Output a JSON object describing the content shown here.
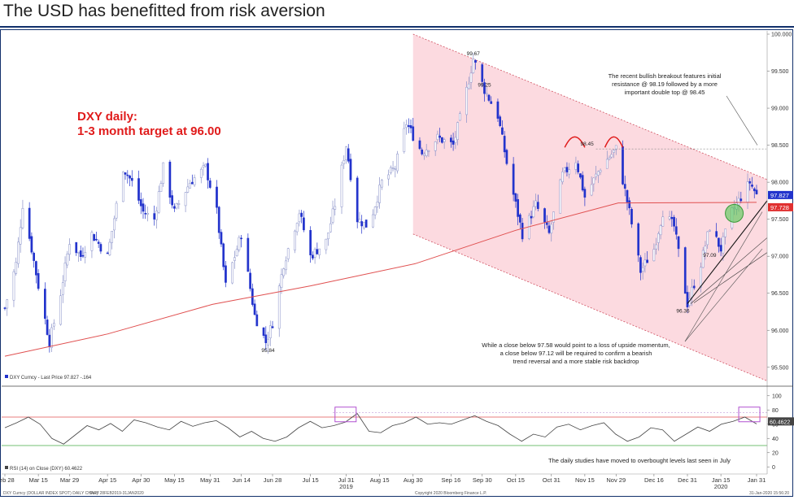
{
  "header": {
    "title": "The USD has benefitted from risk aversion"
  },
  "chart_data": [
    {
      "type": "candlestick",
      "instrument": "DXY Curncy",
      "target_text": [
        "DXY daily:",
        "1-3 month target at 96.00"
      ],
      "legend": "DXY Curncy - Last Price 97.827 -.164",
      "ylim": [
        95.3,
        100.0
      ],
      "y_ticks": [
        "100.000",
        "99.500",
        "99.000",
        "98.500",
        "98.000",
        "97.500",
        "97.000",
        "96.500",
        "96.000",
        "95.500"
      ],
      "last_price": "97.827",
      "ma_value": "97.728",
      "key_levels": [
        {
          "label": "99.67",
          "value": 99.67
        },
        {
          "label": "99.25",
          "value": 99.25
        },
        {
          "label": "98.45",
          "value": 98.45
        },
        {
          "label": "97.09",
          "value": 97.09
        },
        {
          "label": "96.36",
          "value": 96.36
        },
        {
          "label": "95.84",
          "value": 95.84
        }
      ],
      "annotations": [
        [
          "The recent bullish breakout features initial",
          "resistance @ 98.19 followed by a more",
          "important double top @ 98.45"
        ],
        [
          "While a close below 97.58 would point to a loss of upside momentum,",
          "a close below 97.12 will be required to confirm a bearish",
          "trend reversal and a more stable risk backdrop"
        ]
      ],
      "close_path": [
        {
          "date": "2019-02-28",
          "close": 96.3
        },
        {
          "date": "2019-03-05",
          "close": 96.9
        },
        {
          "date": "2019-03-08",
          "close": 97.7
        },
        {
          "date": "2019-03-12",
          "close": 97.1
        },
        {
          "date": "2019-03-15",
          "close": 96.6
        },
        {
          "date": "2019-03-20",
          "close": 95.84
        },
        {
          "date": "2019-03-25",
          "close": 96.5
        },
        {
          "date": "2019-03-29",
          "close": 97.2
        },
        {
          "date": "2019-04-03",
          "close": 97.0
        },
        {
          "date": "2019-04-08",
          "close": 97.3
        },
        {
          "date": "2019-04-15",
          "close": 97.0
        },
        {
          "date": "2019-04-22",
          "close": 98.2
        },
        {
          "date": "2019-04-26",
          "close": 98.0
        },
        {
          "date": "2019-05-01",
          "close": 97.6
        },
        {
          "date": "2019-05-06",
          "close": 97.5
        },
        {
          "date": "2019-05-10",
          "close": 98.2
        },
        {
          "date": "2019-05-15",
          "close": 97.6
        },
        {
          "date": "2019-05-22",
          "close": 98.0
        },
        {
          "date": "2019-05-29",
          "close": 98.2
        },
        {
          "date": "2019-06-03",
          "close": 97.6
        },
        {
          "date": "2019-06-07",
          "close": 96.6
        },
        {
          "date": "2019-06-14",
          "close": 97.3
        },
        {
          "date": "2019-06-20",
          "close": 96.2
        },
        {
          "date": "2019-06-25",
          "close": 95.84
        },
        {
          "date": "2019-06-28",
          "close": 96.1
        },
        {
          "date": "2019-07-03",
          "close": 96.9
        },
        {
          "date": "2019-07-10",
          "close": 97.6
        },
        {
          "date": "2019-07-15",
          "close": 97.0
        },
        {
          "date": "2019-07-22",
          "close": 97.2
        },
        {
          "date": "2019-07-26",
          "close": 97.7
        },
        {
          "date": "2019-07-31",
          "close": 98.5
        },
        {
          "date": "2019-08-05",
          "close": 97.5
        },
        {
          "date": "2019-08-10",
          "close": 97.4
        },
        {
          "date": "2019-08-16",
          "close": 98.0
        },
        {
          "date": "2019-08-22",
          "close": 98.2
        },
        {
          "date": "2019-08-27",
          "close": 98.8
        },
        {
          "date": "2019-09-03",
          "close": 98.4
        },
        {
          "date": "2019-09-10",
          "close": 98.6
        },
        {
          "date": "2019-09-17",
          "close": 98.5
        },
        {
          "date": "2019-09-22",
          "close": 99.1
        },
        {
          "date": "2019-09-26",
          "close": 99.67
        },
        {
          "date": "2019-10-01",
          "close": 99.25
        },
        {
          "date": "2019-10-07",
          "close": 98.9
        },
        {
          "date": "2019-10-12",
          "close": 98.1
        },
        {
          "date": "2019-10-18",
          "close": 97.3
        },
        {
          "date": "2019-10-24",
          "close": 97.7
        },
        {
          "date": "2019-10-30",
          "close": 97.3
        },
        {
          "date": "2019-11-05",
          "close": 98.1
        },
        {
          "date": "2019-11-11",
          "close": 98.3
        },
        {
          "date": "2019-11-15",
          "close": 97.8
        },
        {
          "date": "2019-11-22",
          "close": 98.2
        },
        {
          "date": "2019-11-29",
          "close": 98.45
        },
        {
          "date": "2019-12-05",
          "close": 97.6
        },
        {
          "date": "2019-12-10",
          "close": 96.8
        },
        {
          "date": "2019-12-16",
          "close": 97.1
        },
        {
          "date": "2019-12-20",
          "close": 97.6
        },
        {
          "date": "2019-12-25",
          "close": 97.4
        },
        {
          "date": "2019-12-31",
          "close": 96.36
        },
        {
          "date": "2020-01-06",
          "close": 96.9
        },
        {
          "date": "2020-01-10",
          "close": 97.4
        },
        {
          "date": "2020-01-15",
          "close": 97.1
        },
        {
          "date": "2020-01-20",
          "close": 97.6
        },
        {
          "date": "2020-01-24",
          "close": 97.8
        },
        {
          "date": "2020-01-28",
          "close": 98.0
        },
        {
          "date": "2020-01-31",
          "close": 97.827
        }
      ],
      "moving_average": [
        {
          "date": "2019-02-28",
          "value": 95.65
        },
        {
          "date": "2019-04-15",
          "value": 95.95
        },
        {
          "date": "2019-06-01",
          "value": 96.35
        },
        {
          "date": "2019-07-15",
          "value": 96.6
        },
        {
          "date": "2019-08-31",
          "value": 96.9
        },
        {
          "date": "2019-10-15",
          "value": 97.35
        },
        {
          "date": "2019-11-30",
          "value": 97.72
        },
        {
          "date": "2020-01-31",
          "value": 97.728
        }
      ]
    },
    {
      "type": "line",
      "name": "RSI (14) on Close (DXY) 60.4622",
      "ylim": [
        -10,
        110
      ],
      "y_ticks": [
        "100",
        "80",
        "60",
        "40",
        "20",
        "0"
      ],
      "last_value": "60.4622",
      "overbought": 70,
      "oversold": 30,
      "annotation": "The daily studies have moved to overbought levels last seen in July",
      "rsi": [
        55,
        62,
        70,
        60,
        40,
        32,
        45,
        58,
        52,
        61,
        50,
        66,
        62,
        56,
        52,
        64,
        57,
        62,
        65,
        55,
        42,
        50,
        40,
        36,
        42,
        55,
        64,
        55,
        58,
        63,
        75,
        50,
        48,
        58,
        62,
        70,
        60,
        62,
        60,
        66,
        72,
        64,
        58,
        46,
        36,
        46,
        42,
        56,
        60,
        52,
        58,
        62,
        46,
        36,
        42,
        55,
        52,
        36,
        46,
        56,
        50,
        60,
        64,
        70,
        60.4622
      ]
    }
  ],
  "x_axis": {
    "labels": [
      "Feb 28",
      "Mar 15",
      "Mar 29",
      "Apr 15",
      "Apr 30",
      "May 15",
      "May 31",
      "Jun 14",
      "Jun 28",
      "Jul 15",
      "Jul 31",
      "Aug 15",
      "Aug 30",
      "Sep 16",
      "Sep 30",
      "Oct 15",
      "Oct 31",
      "Nov 15",
      "Nov 29",
      "Dec 16",
      "Dec 31",
      "Jan 15",
      "Jan 31"
    ],
    "years": [
      "2019",
      "2020"
    ]
  },
  "footer": {
    "left": "DXY Curncy (DOLLAR INDEX SPOT) DAILY CHART",
    "mid": "Daily 28FEB2019-31JAN2020",
    "right": "Copyright 2020 Bloomberg Finance L.P.",
    "date": "31-Jan-2020 15:56:20"
  },
  "colors": {
    "up_candle": "#ffffff",
    "down_candle": "#2233cc",
    "channel_fill": "#fbd3da",
    "moving_average": "#e05050",
    "rsi_line": "#444444",
    "overbought_line": "#e05050",
    "oversold_line": "#44aa44",
    "target_text": "#e01b1b",
    "title_rule": "#12306b"
  }
}
